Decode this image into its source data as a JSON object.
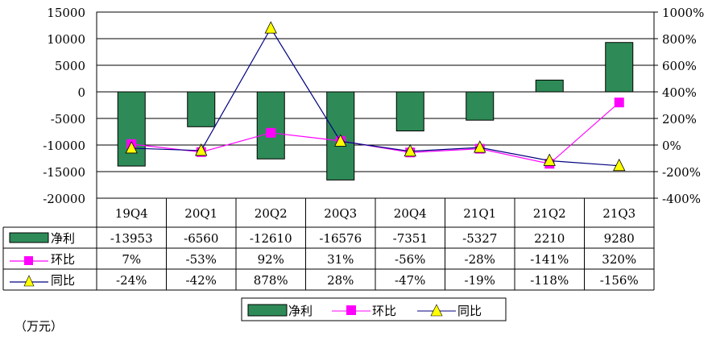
{
  "chart_data": {
    "type": "bar",
    "categories": [
      "19Q4",
      "20Q1",
      "20Q2",
      "20Q3",
      "20Q4",
      "21Q1",
      "21Q2",
      "21Q3"
    ],
    "unit_label": "（万元）",
    "left_axis": {
      "ylim": [
        -20000,
        15000
      ],
      "ticks": [
        15000,
        10000,
        5000,
        0,
        -5000,
        -10000,
        -15000,
        -20000
      ],
      "tick_labels": [
        "15000",
        "10000",
        "5000",
        "0",
        "-5000",
        "-10000",
        "-15000",
        "-20000"
      ]
    },
    "right_axis": {
      "ylim": [
        -400,
        1000
      ],
      "ticks": [
        1000,
        800,
        600,
        400,
        200,
        0,
        -200,
        -400
      ],
      "tick_labels": [
        "1000%",
        "800%",
        "600%",
        "400%",
        "200%",
        "0%",
        "-200%",
        "-400%"
      ]
    },
    "series": [
      {
        "name": "净利",
        "type": "bar",
        "axis": "left",
        "color": "#2e8b57",
        "values": [
          -13953,
          -6560,
          -12610,
          -16576,
          -7351,
          -5327,
          2210,
          9280
        ],
        "labels": [
          "-13953",
          "-6560",
          "-12610",
          "-16576",
          "-7351",
          "-5327",
          "2210",
          "9280"
        ]
      },
      {
        "name": "环比",
        "type": "line",
        "axis": "right",
        "color": "#ff00ff",
        "values": [
          7,
          -53,
          92,
          31,
          -56,
          -28,
          -141,
          320
        ],
        "labels": [
          "7%",
          "-53%",
          "92%",
          "31%",
          "-56%",
          "-28%",
          "-141%",
          "320%"
        ]
      },
      {
        "name": "同比",
        "type": "line",
        "axis": "right",
        "color": "#000080",
        "marker_color": "#ffff00",
        "values": [
          -24,
          -42,
          878,
          28,
          -47,
          -19,
          -118,
          -156
        ],
        "labels": [
          "-24%",
          "-42%",
          "878%",
          "28%",
          "-47%",
          "-19%",
          "-118%",
          "-156%"
        ]
      }
    ],
    "legend": "bottom"
  }
}
